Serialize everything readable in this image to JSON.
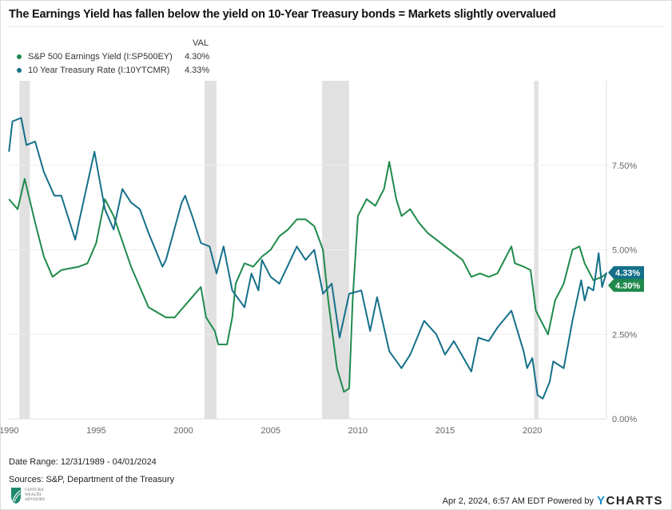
{
  "title": "The Earnings Yield has fallen below the yield on 10-Year Treasury bonds = Markets slightly overvalued",
  "legend": {
    "header": "VAL",
    "items": [
      {
        "label": "S&P 500 Earnings Yield (I:SP500EY)",
        "value": "4.30%",
        "color": "#1f8a4c"
      },
      {
        "label": "10 Year Treasury Rate (I:10YTCMR)",
        "value": "4.33%",
        "color": "#16708a"
      }
    ]
  },
  "footer": {
    "date_range": "Date Range: 12/31/1989 - 04/01/2024",
    "sources": "Sources: S&P, Department of the Treasury",
    "timestamp": "Apr 2, 2024, 6:57 AM EDT Powered by",
    "brand_y": "Y",
    "brand_rest": "CHARTS",
    "logo_text": "CENTURA WEALTH ADVISORY"
  },
  "chart_data": {
    "type": "line",
    "x_range": [
      1989.99,
      2024.25
    ],
    "ylim": [
      0,
      9.5
    ],
    "x_ticks": [
      "1990",
      "1995",
      "2000",
      "2005",
      "2010",
      "2015",
      "2020"
    ],
    "x_tick_values": [
      1990,
      1995,
      2000,
      2005,
      2010,
      2015,
      2020
    ],
    "y_ticks": [
      "0.00%",
      "2.50%",
      "5.00%",
      "7.50%"
    ],
    "y_tick_values": [
      0,
      2.5,
      5,
      7.5
    ],
    "grid": true,
    "recessions": [
      [
        1990.6,
        1991.2
      ],
      [
        2001.2,
        2001.9
      ],
      [
        2007.95,
        2009.5
      ],
      [
        2020.1,
        2020.35
      ]
    ],
    "end_labels": [
      "4.33%",
      "4.30%"
    ],
    "series": [
      {
        "name": "S&P 500 Earnings Yield (I:SP500EY)",
        "color": "#1f8a4c",
        "x": [
          1990,
          1990.5,
          1990.9,
          1991.5,
          1992,
          1992.5,
          1993,
          1994,
          1994.5,
          1995,
          1995.5,
          1996,
          1997,
          1998,
          1999,
          1999.5,
          2000,
          2000.5,
          2001,
          2001.3,
          2001.8,
          2002,
          2002.5,
          2002.8,
          2003,
          2003.5,
          2004,
          2004.5,
          2005,
          2005.5,
          2006,
          2006.5,
          2007,
          2007.5,
          2008,
          2008.3,
          2008.8,
          2009.2,
          2009.5,
          2009.7,
          2010,
          2010.5,
          2011,
          2011.5,
          2011.8,
          2012.2,
          2012.5,
          2013,
          2013.5,
          2014,
          2014.5,
          2015,
          2016,
          2016.5,
          2017,
          2017.5,
          2018,
          2018.8,
          2019,
          2019.5,
          2019.9,
          2020.2,
          2020.5,
          2020.9,
          2021.3,
          2021.8,
          2022.3,
          2022.7,
          2023,
          2023.5,
          2024,
          2024.25
        ],
        "y": [
          6.5,
          6.2,
          7.1,
          5.8,
          4.8,
          4.2,
          4.4,
          4.5,
          4.6,
          5.2,
          6.5,
          6.0,
          4.5,
          3.3,
          3.0,
          3.0,
          3.3,
          3.6,
          3.9,
          3.0,
          2.6,
          2.2,
          2.2,
          3.0,
          4.0,
          4.6,
          4.5,
          4.8,
          5.0,
          5.4,
          5.6,
          5.9,
          5.9,
          5.7,
          5.0,
          3.5,
          1.5,
          0.8,
          0.9,
          3.5,
          6.0,
          6.5,
          6.3,
          6.8,
          7.6,
          6.5,
          6.0,
          6.2,
          5.8,
          5.5,
          5.3,
          5.1,
          4.7,
          4.2,
          4.3,
          4.2,
          4.3,
          5.1,
          4.6,
          4.5,
          4.4,
          3.2,
          2.9,
          2.5,
          3.5,
          4.0,
          5.0,
          5.1,
          4.6,
          4.1,
          4.2,
          4.3
        ]
      },
      {
        "name": "10 Year Treasury Rate (I:10YTCMR)",
        "color": "#16708a",
        "x": [
          1990,
          1990.2,
          1990.7,
          1991,
          1991.5,
          1992,
          1992.6,
          1993,
          1993.8,
          1994,
          1994.9,
          1995.5,
          1996,
          1996.5,
          1997,
          1997.5,
          1998,
          1998.8,
          1999,
          1999.9,
          2000.1,
          2000.5,
          2001,
          2001.5,
          2001.9,
          2002.3,
          2002.8,
          2003.5,
          2003.9,
          2004.3,
          2004.5,
          2005,
          2005.5,
          2006.5,
          2007,
          2007.5,
          2008,
          2008.5,
          2008.95,
          2009.5,
          2010.2,
          2010.7,
          2011.1,
          2011.8,
          2012.5,
          2013,
          2013.8,
          2014.5,
          2015,
          2015.5,
          2016.5,
          2016.9,
          2017.5,
          2018,
          2018.8,
          2019.5,
          2019.7,
          2020,
          2020.3,
          2020.6,
          2021,
          2021.2,
          2021.8,
          2022.3,
          2022.8,
          2023,
          2023.2,
          2023.5,
          2023.8,
          2024,
          2024.25
        ],
        "y": [
          7.9,
          8.8,
          8.9,
          8.1,
          8.2,
          7.3,
          6.6,
          6.6,
          5.3,
          5.8,
          7.9,
          6.2,
          5.6,
          6.8,
          6.4,
          6.2,
          5.5,
          4.5,
          4.7,
          6.4,
          6.6,
          6.0,
          5.2,
          5.1,
          4.3,
          5.1,
          3.8,
          3.3,
          4.3,
          3.8,
          4.7,
          4.2,
          4.0,
          5.1,
          4.7,
          5.0,
          3.7,
          4.0,
          2.4,
          3.7,
          3.8,
          2.6,
          3.6,
          2.0,
          1.5,
          1.9,
          2.9,
          2.5,
          1.9,
          2.3,
          1.4,
          2.4,
          2.3,
          2.7,
          3.2,
          2.0,
          1.5,
          1.8,
          0.7,
          0.6,
          1.1,
          1.7,
          1.5,
          2.9,
          4.1,
          3.5,
          3.9,
          3.8,
          4.9,
          3.9,
          4.33
        ]
      }
    ]
  }
}
